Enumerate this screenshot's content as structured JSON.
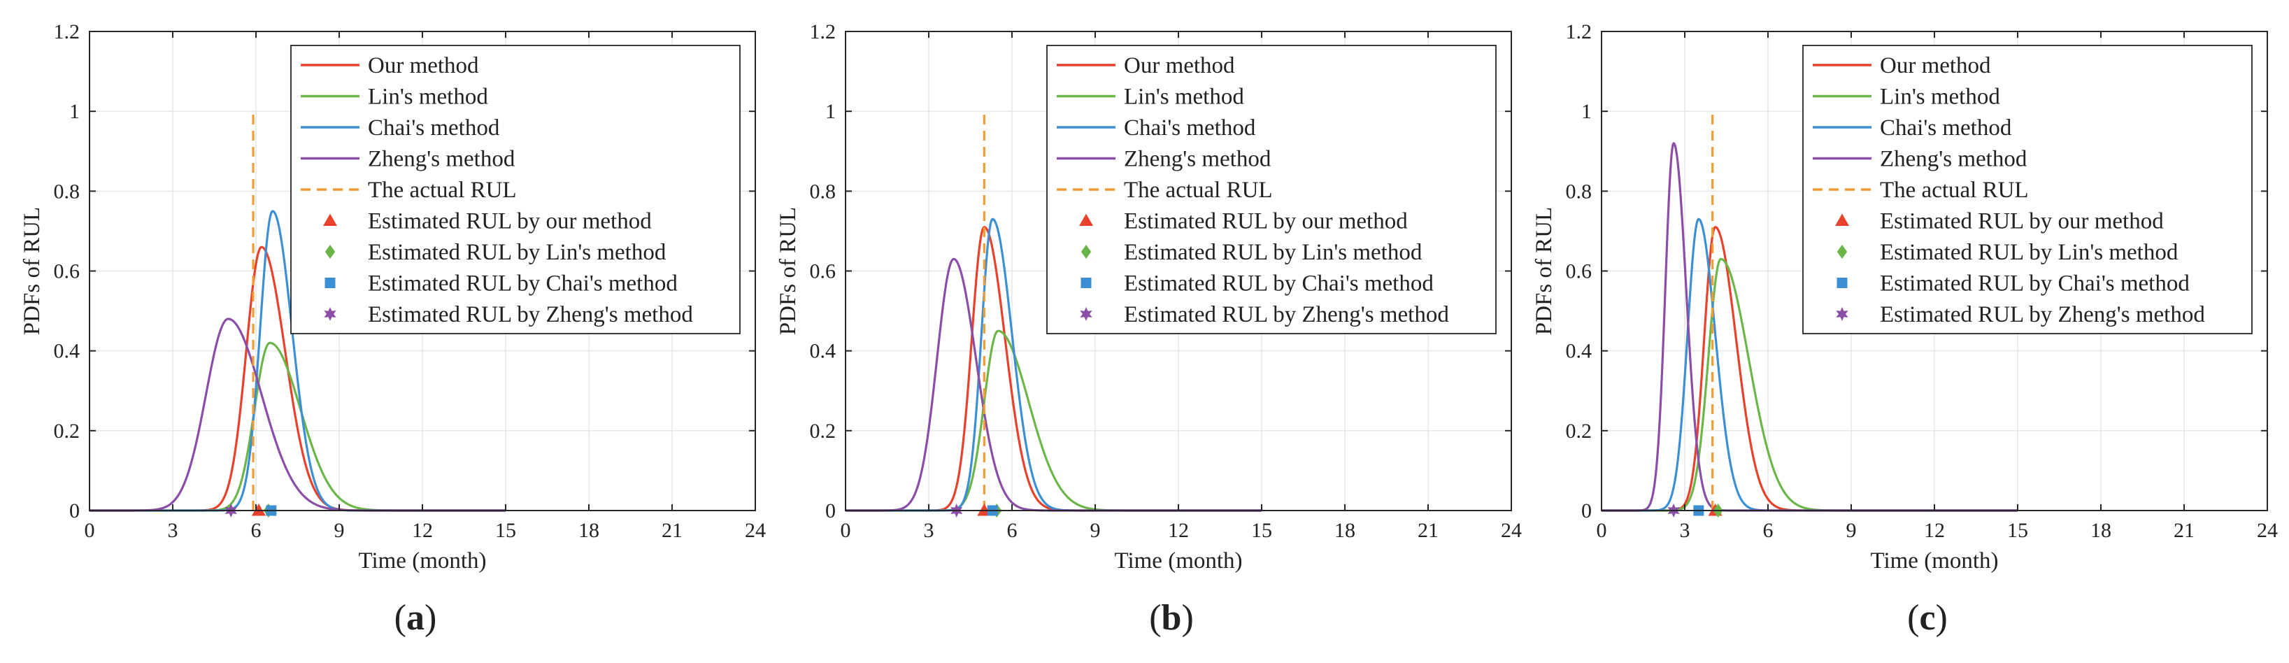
{
  "colors": {
    "ours": "#e8412c",
    "lin": "#6cb649",
    "chai": "#3d8fd4",
    "zheng": "#8a4ea6",
    "actual": "#f39c34",
    "axis": "#262626",
    "grid": "#e6e6e6"
  },
  "chart_data": [
    {
      "type": "line",
      "panel_label": "a",
      "xlabel": "Time (month)",
      "ylabel": "PDFs of RUL",
      "xlim": [
        0,
        24
      ],
      "ylim": [
        0,
        1.2
      ],
      "xticks": [
        0,
        3,
        6,
        9,
        12,
        15,
        18,
        21,
        24
      ],
      "yticks": [
        0,
        0.2,
        0.4,
        0.6,
        0.8,
        1,
        1.2
      ],
      "grid": true,
      "legend_position": "top-right",
      "x_range_of_curves": [
        0,
        15
      ],
      "series": [
        {
          "key": "ours",
          "name": "Our method",
          "style": "solid",
          "peak_x": 6.2,
          "peak_y": 0.66,
          "left_width": 0.55,
          "right_width": 0.85
        },
        {
          "key": "lin",
          "name": "Lin's method",
          "style": "solid",
          "peak_x": 6.5,
          "peak_y": 0.42,
          "left_width": 0.55,
          "right_width": 1.1
        },
        {
          "key": "chai",
          "name": "Chai's method",
          "style": "solid",
          "peak_x": 6.6,
          "peak_y": 0.75,
          "left_width": 0.45,
          "right_width": 0.7
        },
        {
          "key": "zheng",
          "name": "Zheng's method",
          "style": "solid",
          "peak_x": 5.0,
          "peak_y": 0.48,
          "left_width": 0.8,
          "right_width": 1.2
        }
      ],
      "actual_rul": {
        "name": "The actual RUL",
        "x": 5.9,
        "y_top": 1.0
      },
      "estimates": [
        {
          "key": "ours",
          "name": "Estimated RUL by our method",
          "marker": "triangle",
          "x": 6.1
        },
        {
          "key": "lin",
          "name": "Estimated RUL by Lin's method",
          "marker": "diamond",
          "x": 6.45
        },
        {
          "key": "chai",
          "name": "Estimated RUL by Chai's method",
          "marker": "square",
          "x": 6.55
        },
        {
          "key": "zheng",
          "name": "Estimated RUL by Zheng's method",
          "marker": "star",
          "x": 5.1
        }
      ]
    },
    {
      "type": "line",
      "panel_label": "b",
      "xlabel": "Time (month)",
      "ylabel": "PDFs of RUL",
      "xlim": [
        0,
        24
      ],
      "ylim": [
        0,
        1.2
      ],
      "xticks": [
        0,
        3,
        6,
        9,
        12,
        15,
        18,
        21,
        24
      ],
      "yticks": [
        0,
        0.2,
        0.4,
        0.6,
        0.8,
        1,
        1.2
      ],
      "grid": true,
      "legend_position": "top-right",
      "x_range_of_curves": [
        0,
        15
      ],
      "series": [
        {
          "key": "ours",
          "name": "Our method",
          "style": "solid",
          "peak_x": 5.0,
          "peak_y": 0.71,
          "left_width": 0.45,
          "right_width": 0.75
        },
        {
          "key": "lin",
          "name": "Lin's method",
          "style": "solid",
          "peak_x": 5.5,
          "peak_y": 0.45,
          "left_width": 0.5,
          "right_width": 1.1
        },
        {
          "key": "chai",
          "name": "Chai's method",
          "style": "solid",
          "peak_x": 5.3,
          "peak_y": 0.73,
          "left_width": 0.4,
          "right_width": 0.7
        },
        {
          "key": "zheng",
          "name": "Zheng's method",
          "style": "solid",
          "peak_x": 3.9,
          "peak_y": 0.63,
          "left_width": 0.6,
          "right_width": 0.8
        }
      ],
      "actual_rul": {
        "name": "The actual RUL",
        "x": 5.0,
        "y_top": 1.0
      },
      "estimates": [
        {
          "key": "ours",
          "name": "Estimated RUL by our method",
          "marker": "triangle",
          "x": 5.0
        },
        {
          "key": "lin",
          "name": "Estimated RUL by Lin's method",
          "marker": "diamond",
          "x": 5.45
        },
        {
          "key": "chai",
          "name": "Estimated RUL by Chai's method",
          "marker": "square",
          "x": 5.3
        },
        {
          "key": "zheng",
          "name": "Estimated RUL by Zheng's method",
          "marker": "star",
          "x": 4.0
        }
      ]
    },
    {
      "type": "line",
      "panel_label": "c",
      "xlabel": "Time (month)",
      "ylabel": "PDFs of RUL",
      "xlim": [
        0,
        24
      ],
      "ylim": [
        0,
        1.2
      ],
      "xticks": [
        0,
        3,
        6,
        9,
        12,
        15,
        18,
        21,
        24
      ],
      "yticks": [
        0,
        0.2,
        0.4,
        0.6,
        0.8,
        1,
        1.2
      ],
      "grid": true,
      "legend_position": "top-right",
      "x_range_of_curves": [
        0,
        15
      ],
      "series": [
        {
          "key": "ours",
          "name": "Our method",
          "style": "solid",
          "peak_x": 4.1,
          "peak_y": 0.71,
          "left_width": 0.4,
          "right_width": 0.75
        },
        {
          "key": "lin",
          "name": "Lin's method",
          "style": "solid",
          "peak_x": 4.3,
          "peak_y": 0.63,
          "left_width": 0.45,
          "right_width": 1.0
        },
        {
          "key": "chai",
          "name": "Chai's method",
          "style": "solid",
          "peak_x": 3.5,
          "peak_y": 0.73,
          "left_width": 0.4,
          "right_width": 0.6
        },
        {
          "key": "zheng",
          "name": "Zheng's method",
          "style": "solid",
          "peak_x": 2.6,
          "peak_y": 0.92,
          "left_width": 0.3,
          "right_width": 0.45
        }
      ],
      "actual_rul": {
        "name": "The actual RUL",
        "x": 4.0,
        "y_top": 1.0
      },
      "estimates": [
        {
          "key": "ours",
          "name": "Estimated RUL by our method",
          "marker": "triangle",
          "x": 4.1
        },
        {
          "key": "lin",
          "name": "Estimated RUL by Lin's method",
          "marker": "diamond",
          "x": 4.2
        },
        {
          "key": "chai",
          "name": "Estimated RUL by Chai's method",
          "marker": "square",
          "x": 3.5
        },
        {
          "key": "zheng",
          "name": "Estimated RUL by Zheng's method",
          "marker": "star",
          "x": 2.6
        }
      ]
    }
  ]
}
